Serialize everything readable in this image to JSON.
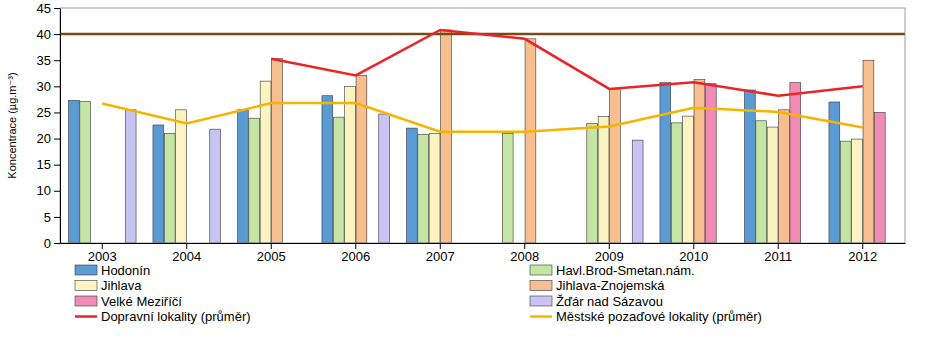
{
  "chart_data": {
    "type": "bar",
    "y_label": "Koncentrace (µg.m⁻³)",
    "categories": [
      "2003",
      "2004",
      "2005",
      "2006",
      "2007",
      "2008",
      "2009",
      "2010",
      "2011",
      "2012"
    ],
    "series": [
      {
        "name": "Hodonín",
        "color": "#5b9bd5",
        "values": [
          27.3,
          22.6,
          25.5,
          28.2,
          22.0,
          null,
          null,
          30.7,
          29.3,
          27.0
        ]
      },
      {
        "name": "Havl.Brod-Smetan.nám.",
        "color": "#c4e5a4",
        "values": [
          27.1,
          21.0,
          23.9,
          24.1,
          20.8,
          21.0,
          22.9,
          23.0,
          23.4,
          19.5
        ]
      },
      {
        "name": "Jihlava",
        "color": "#fbf3c2",
        "values": [
          null,
          25.5,
          31.0,
          30.0,
          21.0,
          null,
          24.2,
          24.3,
          22.2,
          19.9
        ]
      },
      {
        "name": "Jihlava-Znojemská",
        "color": "#f7bf8f",
        "values": [
          null,
          null,
          35.3,
          32.1,
          40.8,
          39.1,
          29.5,
          31.3,
          25.5,
          35.0
        ]
      },
      {
        "name": "Velké Meziříčí",
        "color": "#f08cb4",
        "values": [
          null,
          null,
          null,
          null,
          null,
          null,
          null,
          30.5,
          30.7,
          25.0
        ]
      },
      {
        "name": "Žďár nad Sázavou",
        "color": "#c8c3f2",
        "values": [
          25.5,
          21.8,
          null,
          24.7,
          null,
          null,
          19.7,
          null,
          null,
          null
        ]
      },
      {
        "name": "Dopravní lokality (průměr)",
        "color": "#e8262a",
        "type": "line",
        "values": [
          null,
          null,
          35.3,
          32.1,
          40.8,
          39.1,
          29.5,
          30.8,
          28.2,
          30.0
        ]
      },
      {
        "name": "Městské pozaďové lokality (průměr)",
        "color": "#f5b400",
        "type": "line",
        "values": [
          26.7,
          22.9,
          26.8,
          26.8,
          21.3,
          21.3,
          22.3,
          25.9,
          25.1,
          22.1
        ]
      }
    ],
    "reference_line": {
      "value": 40,
      "color": "#7a4a14"
    },
    "ylim": [
      0,
      45
    ],
    "yticks": [
      0,
      5,
      10,
      15,
      20,
      25,
      30,
      35,
      40,
      45
    ],
    "grid": false,
    "legend": "bottom"
  }
}
